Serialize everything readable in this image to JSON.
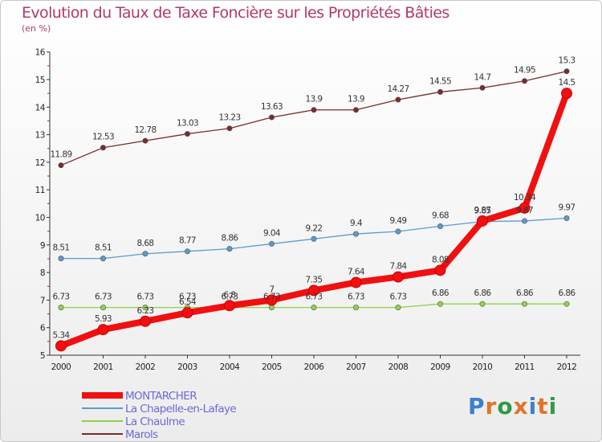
{
  "header": {
    "title": "Evolution du Taux de Taxe Foncière sur les Propriétés Bâties",
    "subtitle": "(en %)"
  },
  "logo": {
    "text": "Proxiti",
    "letter_colors": [
      "#3a7fd1",
      "#e0752a",
      "#2f9a46",
      "#e0752a",
      "#3a7fd1",
      "#e0752a",
      "#2f9a46"
    ]
  },
  "chart_data": {
    "type": "line",
    "x": [
      "2000",
      "2001",
      "2002",
      "2003",
      "2004",
      "2005",
      "2006",
      "2007",
      "2008",
      "2009",
      "2010",
      "2011",
      "2012"
    ],
    "ylim": [
      5,
      16
    ],
    "yticks": [
      "5",
      "6",
      "7",
      "8",
      "9",
      "10",
      "11",
      "12",
      "13",
      "14",
      "15",
      "16"
    ],
    "grid": "none",
    "legend_position": "bottom-left",
    "series": [
      {
        "name": "MONTARCHER",
        "color": "#f01010",
        "values": [
          5.34,
          5.93,
          6.23,
          6.54,
          6.8,
          7,
          7.35,
          7.64,
          7.84,
          8.08,
          9.87,
          10.34,
          14.5
        ],
        "labels": [
          "5.34",
          "5.93",
          "6.23",
          "6.54",
          "6.8",
          "7",
          "7.35",
          "7.64",
          "7.84",
          "8.08",
          "9.87",
          "10.34",
          "14.5"
        ]
      },
      {
        "name": "La Chapelle-en-Lafaye",
        "color": "#5b9ad0",
        "values": [
          8.51,
          8.51,
          8.68,
          8.77,
          8.86,
          9.04,
          9.22,
          9.4,
          9.49,
          9.68,
          9.85,
          9.87,
          9.97
        ],
        "labels": [
          "8.51",
          "8.51",
          "8.68",
          "8.77",
          "8.86",
          "9.04",
          "9.22",
          "9.4",
          "9.49",
          "9.68",
          "9.85",
          "9.87",
          "9.97"
        ]
      },
      {
        "name": "La Chaulme",
        "color": "#8fd24a",
        "values": [
          6.73,
          6.73,
          6.73,
          6.73,
          6.73,
          6.73,
          6.73,
          6.73,
          6.73,
          6.86,
          6.86,
          6.86,
          6.86
        ],
        "labels": [
          "6.73",
          "6.73",
          "6.73",
          "6.73",
          "6.73",
          "6.73",
          "6.73",
          "6.73",
          "6.73",
          "6.86",
          "6.86",
          "6.86",
          "6.86"
        ]
      },
      {
        "name": "Marols",
        "color": "#7d2a2a",
        "values": [
          11.89,
          12.53,
          12.78,
          13.03,
          13.23,
          13.63,
          13.9,
          13.9,
          14.27,
          14.55,
          14.7,
          14.95,
          15.3
        ],
        "labels": [
          "11.89",
          "12.53",
          "12.78",
          "13.03",
          "13.23",
          "13.63",
          "13.9",
          "13.9",
          "14.27",
          "14.55",
          "14.7",
          "14.95",
          "15.3"
        ]
      }
    ]
  }
}
